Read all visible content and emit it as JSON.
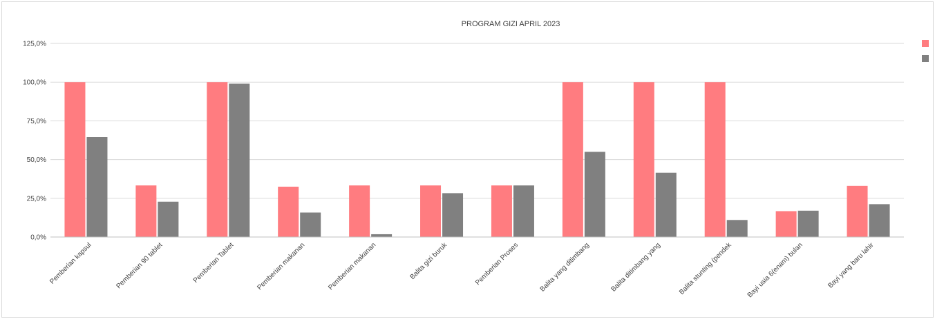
{
  "chart_data": {
    "type": "bar",
    "title": "PROGRAM GIZI APRIL 2023",
    "xlabel": "",
    "ylabel": "",
    "ylim": [
      0,
      1.25
    ],
    "y_ticks": [
      "0,0%",
      "25,0%",
      "50,0%",
      "75,0%",
      "100,0%",
      "125,0%"
    ],
    "grid": true,
    "legend": "right (entries without visible labels)",
    "categories": [
      "Pemberian kapsul",
      "Pemberian 90 tablet",
      "Pemberian Tablet",
      "Pemberian makanan",
      "Pemberian makanan",
      "Balita gizi buruk",
      "Pemberian Proses",
      "Balita yang ditimbang",
      "Balita ditimbang yang",
      "Balita stunting (pendek",
      "Bayi usia 6(enam) bulan",
      "Bayi yang baru lahir"
    ],
    "series": [
      {
        "color": "#ff7c80",
        "values": [
          1.0,
          0.333,
          1.0,
          0.325,
          0.333,
          0.333,
          0.333,
          1.0,
          1.0,
          1.0,
          0.167,
          0.33
        ]
      },
      {
        "color": "#808080",
        "values": [
          0.645,
          0.228,
          0.99,
          0.158,
          0.018,
          0.283,
          0.333,
          0.55,
          0.415,
          0.11,
          0.17,
          0.212
        ]
      }
    ]
  }
}
